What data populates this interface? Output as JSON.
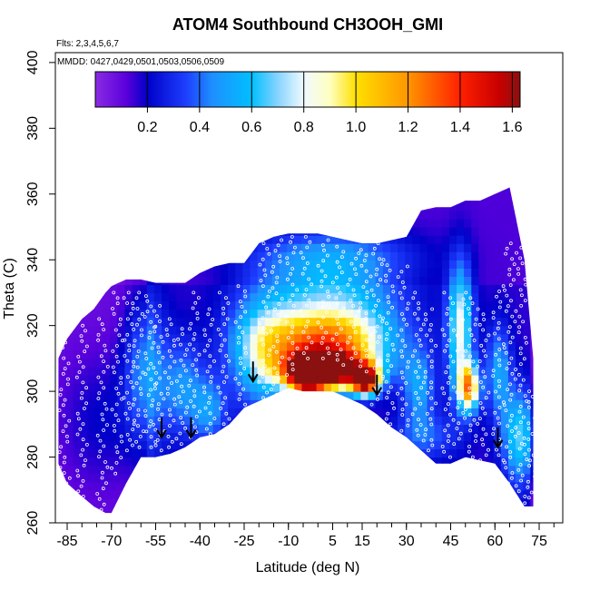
{
  "chart_data": {
    "type": "heatmap",
    "title": "ATOM4 Southbound CH3OOH_GMI",
    "subtitle_flights": "Flts: 2,3,4,5,6,7",
    "subtitle_dates": "MMDD: 0427,0429,0501,0503,0506,0509",
    "xlabel": "Latitude (deg N)",
    "ylabel": "Theta (C)",
    "xlim": [
      -89,
      83
    ],
    "ylim": [
      260,
      403
    ],
    "x_ticks": [
      -85,
      -70,
      -55,
      -40,
      -25,
      -10,
      5,
      15,
      30,
      45,
      60,
      75
    ],
    "x_tick_labels": [
      "-85",
      "-70",
      "-55",
      "-40",
      "-25",
      "-10",
      "5",
      "15",
      "30",
      "45",
      "60",
      "75"
    ],
    "y_ticks": [
      260,
      280,
      300,
      320,
      340,
      360,
      380,
      400
    ],
    "y_tick_labels": [
      "260",
      "280",
      "300",
      "320",
      "340",
      "360",
      "380",
      "400"
    ],
    "colorbar": {
      "min": 0.0,
      "max": 1.63,
      "ticks": [
        0.2,
        0.4,
        0.6,
        0.8,
        1.0,
        1.2,
        1.4,
        1.6
      ],
      "tick_labels": [
        "0.2",
        "0.4",
        "0.6",
        "0.8",
        "1.0",
        "1.2",
        "1.4",
        "1.6"
      ],
      "color_stops": [
        {
          "v": 0.0,
          "c": "#8a2be2"
        },
        {
          "v": 0.12,
          "c": "#5a00dc"
        },
        {
          "v": 0.2,
          "c": "#0000c8"
        },
        {
          "v": 0.35,
          "c": "#1e40ff"
        },
        {
          "v": 0.45,
          "c": "#1e90ff"
        },
        {
          "v": 0.6,
          "c": "#00bfff"
        },
        {
          "v": 0.7,
          "c": "#87d3ff"
        },
        {
          "v": 0.8,
          "c": "#f0faff"
        },
        {
          "v": 0.9,
          "c": "#ffffc0"
        },
        {
          "v": 1.0,
          "c": "#ffe000"
        },
        {
          "v": 1.2,
          "c": "#ff9500"
        },
        {
          "v": 1.4,
          "c": "#ff2000"
        },
        {
          "v": 1.55,
          "c": "#c80000"
        },
        {
          "v": 1.63,
          "c": "#8b1010"
        }
      ]
    },
    "field_envelope": {
      "latitudes": [
        -88,
        -85,
        -80,
        -76,
        -72,
        -70,
        -65,
        -60,
        -55,
        -50,
        -45,
        -40,
        -35,
        -30,
        -25,
        -20,
        -15,
        -10,
        -5,
        0,
        5,
        10,
        15,
        20,
        25,
        30,
        35,
        40,
        45,
        50,
        55,
        60,
        65,
        70,
        73
      ],
      "theta_top": [
        310,
        316,
        322,
        325,
        330,
        332,
        334,
        334,
        333,
        333,
        333,
        336,
        338,
        339,
        339,
        345,
        347,
        348,
        348,
        348,
        347,
        346,
        345,
        345,
        346,
        347,
        355,
        356,
        356,
        358,
        358,
        360,
        362,
        340,
        310
      ],
      "theta_bottom": [
        278,
        272,
        268,
        265,
        263,
        263,
        272,
        280,
        280,
        281,
        283,
        286,
        287,
        290,
        295,
        297,
        299,
        301,
        300,
        300,
        300,
        298,
        296,
        293,
        289,
        286,
        282,
        278,
        278,
        280,
        279,
        278,
        272,
        265,
        265
      ]
    },
    "concentration_blobs": [
      {
        "lat": 2,
        "theta": 305,
        "value": 1.5,
        "sx": 10,
        "sy": 4
      },
      {
        "lat": 15,
        "theta": 302,
        "value": 1.3,
        "sx": 3,
        "sy": 3
      },
      {
        "lat": -5,
        "theta": 303,
        "value": 0.95,
        "sx": 4,
        "sy": 4
      },
      {
        "lat": 1,
        "theta": 313,
        "value": 0.75,
        "sx": 14,
        "sy": 6
      },
      {
        "lat": 3,
        "theta": 322,
        "value": 0.55,
        "sx": 16,
        "sy": 10
      },
      {
        "lat": 3,
        "theta": 340,
        "value": 0.3,
        "sx": 20,
        "sy": 6
      },
      {
        "lat": -20,
        "theta": 310,
        "value": 0.45,
        "sx": 8,
        "sy": 12
      },
      {
        "lat": -60,
        "theta": 305,
        "value": 0.35,
        "sx": 5,
        "sy": 16
      },
      {
        "lat": -47,
        "theta": 300,
        "value": 0.3,
        "sx": 5,
        "sy": 10
      },
      {
        "lat": -38,
        "theta": 293,
        "value": 0.3,
        "sx": 4,
        "sy": 7
      },
      {
        "lat": 47,
        "theta": 318,
        "value": 0.65,
        "sx": 3,
        "sy": 14
      },
      {
        "lat": 50,
        "theta": 300,
        "value": 0.95,
        "sx": 2.5,
        "sy": 5
      },
      {
        "lat": 33,
        "theta": 300,
        "value": 0.35,
        "sx": 4,
        "sy": 8
      },
      {
        "lat": 60,
        "theta": 305,
        "value": 0.35,
        "sx": 3,
        "sy": 10
      },
      {
        "lat": 67,
        "theta": 285,
        "value": 0.5,
        "sx": 4,
        "sy": 10
      },
      {
        "lat": 35,
        "theta": 285,
        "value": 0.22,
        "sx": 8,
        "sy": 5
      },
      {
        "lat": -75,
        "theta": 290,
        "value": 0.12,
        "sx": 10,
        "sy": 15
      }
    ],
    "flight_tracks": [
      {
        "lat": -86,
        "theta_from": 272,
        "theta_to": 318
      },
      {
        "lat": -80,
        "theta_from": 268,
        "theta_to": 320
      },
      {
        "lat": -73,
        "theta_from": 264,
        "theta_to": 322
      },
      {
        "lat": -68,
        "theta_from": 275,
        "theta_to": 330
      },
      {
        "lat": -64,
        "theta_from": 282,
        "theta_to": 330
      },
      {
        "lat": -61,
        "theta_from": 283,
        "theta_to": 330
      },
      {
        "lat": -57,
        "theta_from": 283,
        "theta_to": 329
      },
      {
        "lat": -54,
        "theta_from": 282,
        "theta_to": 326
      },
      {
        "lat": -50,
        "theta_from": 283,
        "theta_to": 322
      },
      {
        "lat": -46,
        "theta_from": 284,
        "theta_to": 319
      },
      {
        "lat": -42,
        "theta_from": 286,
        "theta_to": 330
      },
      {
        "lat": -37,
        "theta_from": 287,
        "theta_to": 325
      },
      {
        "lat": -32,
        "theta_from": 290,
        "theta_to": 330
      },
      {
        "lat": -26,
        "theta_from": 296,
        "theta_to": 332
      },
      {
        "lat": -18,
        "theta_from": 298,
        "theta_to": 345
      },
      {
        "lat": -14,
        "theta_from": 299,
        "theta_to": 346
      },
      {
        "lat": -9,
        "theta_from": 305,
        "theta_to": 347
      },
      {
        "lat": -4,
        "theta_from": 310,
        "theta_to": 347
      },
      {
        "lat": 2,
        "theta_from": 310,
        "theta_to": 346
      },
      {
        "lat": 7,
        "theta_from": 308,
        "theta_to": 344
      },
      {
        "lat": 12,
        "theta_from": 310,
        "theta_to": 342
      },
      {
        "lat": 16,
        "theta_from": 306,
        "theta_to": 343
      },
      {
        "lat": 20,
        "theta_from": 296,
        "theta_to": 345
      },
      {
        "lat": 24,
        "theta_from": 290,
        "theta_to": 340
      },
      {
        "lat": 29,
        "theta_from": 288,
        "theta_to": 338
      },
      {
        "lat": 34,
        "theta_from": 285,
        "theta_to": 330
      },
      {
        "lat": 38,
        "theta_from": 282,
        "theta_to": 325
      },
      {
        "lat": 44,
        "theta_from": 280,
        "theta_to": 330
      },
      {
        "lat": 48,
        "theta_from": 284,
        "theta_to": 328
      },
      {
        "lat": 52,
        "theta_from": 280,
        "theta_to": 330
      },
      {
        "lat": 56,
        "theta_from": 279,
        "theta_to": 325
      },
      {
        "lat": 61,
        "theta_from": 279,
        "theta_to": 332
      },
      {
        "lat": 65,
        "theta_from": 272,
        "theta_to": 345
      },
      {
        "lat": 69,
        "theta_from": 268,
        "theta_to": 355
      },
      {
        "lat": 72,
        "theta_from": 266,
        "theta_to": 300
      }
    ],
    "arrows": [
      {
        "lat": -53,
        "theta": 286
      },
      {
        "lat": -43,
        "theta": 286
      },
      {
        "lat": -22,
        "theta": 303
      },
      {
        "lat": 20,
        "theta": 299
      },
      {
        "lat": 61,
        "theta": 283
      }
    ],
    "grid": false
  }
}
